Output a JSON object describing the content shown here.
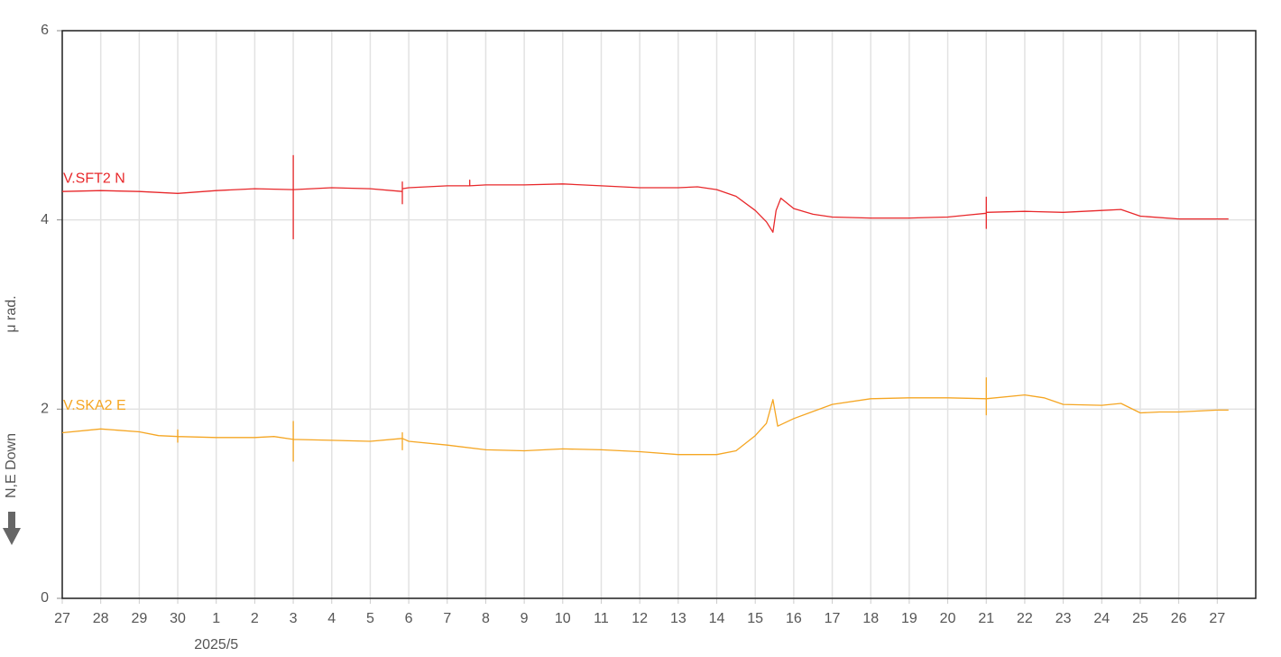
{
  "chart_data": {
    "type": "line",
    "ylabel": "μ rad.",
    "direction_label": "N,E Down",
    "ylim": [
      0,
      6
    ],
    "yticks": [
      0,
      2,
      4,
      6
    ],
    "xlim": [
      "2025-04-27",
      "2025-05-28"
    ],
    "xticks": [
      {
        "value": "2025-04-27",
        "label": "27"
      },
      {
        "value": "2025-04-28",
        "label": "28"
      },
      {
        "value": "2025-04-29",
        "label": "29"
      },
      {
        "value": "2025-04-30",
        "label": "30"
      },
      {
        "value": "2025-05-01",
        "label": "1"
      },
      {
        "value": "2025-05-02",
        "label": "2"
      },
      {
        "value": "2025-05-03",
        "label": "3"
      },
      {
        "value": "2025-05-04",
        "label": "4"
      },
      {
        "value": "2025-05-05",
        "label": "5"
      },
      {
        "value": "2025-05-06",
        "label": "6"
      },
      {
        "value": "2025-05-07",
        "label": "7"
      },
      {
        "value": "2025-05-08",
        "label": "8"
      },
      {
        "value": "2025-05-09",
        "label": "9"
      },
      {
        "value": "2025-05-10",
        "label": "10"
      },
      {
        "value": "2025-05-11",
        "label": "11"
      },
      {
        "value": "2025-05-12",
        "label": "12"
      },
      {
        "value": "2025-05-13",
        "label": "13"
      },
      {
        "value": "2025-05-14",
        "label": "14"
      },
      {
        "value": "2025-05-15",
        "label": "15"
      },
      {
        "value": "2025-05-16",
        "label": "16"
      },
      {
        "value": "2025-05-17",
        "label": "17"
      },
      {
        "value": "2025-05-18",
        "label": "18"
      },
      {
        "value": "2025-05-19",
        "label": "19"
      },
      {
        "value": "2025-05-20",
        "label": "20"
      },
      {
        "value": "2025-05-21",
        "label": "21"
      },
      {
        "value": "2025-05-22",
        "label": "22"
      },
      {
        "value": "2025-05-23",
        "label": "23"
      },
      {
        "value": "2025-05-24",
        "label": "24"
      },
      {
        "value": "2025-05-25",
        "label": "25"
      },
      {
        "value": "2025-05-26",
        "label": "26"
      },
      {
        "value": "2025-05-27",
        "label": "27"
      }
    ],
    "x_group_label": {
      "value": "2025-05-01",
      "label": "2025/5"
    },
    "grid": true,
    "series": [
      {
        "name": "V.SFT2 N",
        "color": "#e8282b",
        "x": [
          "2025-04-27",
          "2025-04-28",
          "2025-04-29",
          "2025-04-30",
          "2025-05-01",
          "2025-05-02",
          "2025-05-03",
          "2025-05-03",
          "2025-05-03",
          "2025-05-03",
          "2025-05-04",
          "2025-05-05",
          "2025-05-05T20:00",
          "2025-05-05T20:00",
          "2025-05-05T20:00",
          "2025-05-05T20:00",
          "2025-05-06",
          "2025-05-07",
          "2025-05-07T14:00",
          "2025-05-07T14:00",
          "2025-05-07T14:00",
          "2025-05-08",
          "2025-05-09",
          "2025-05-10",
          "2025-05-11",
          "2025-05-12",
          "2025-05-13",
          "2025-05-13T12:00",
          "2025-05-14",
          "2025-05-14T12:00",
          "2025-05-15",
          "2025-05-15T07:00",
          "2025-05-15T11:00",
          "2025-05-15T13:00",
          "2025-05-15T16:00",
          "2025-05-16",
          "2025-05-16T12:00",
          "2025-05-17",
          "2025-05-18",
          "2025-05-19",
          "2025-05-20",
          "2025-05-20T12:00",
          "2025-05-21",
          "2025-05-21",
          "2025-05-21",
          "2025-05-21",
          "2025-05-22",
          "2025-05-23",
          "2025-05-24",
          "2025-05-24T12:00",
          "2025-05-25",
          "2025-05-26",
          "2025-05-27",
          "2025-05-27T07:00"
        ],
        "values": [
          4.3,
          4.31,
          4.3,
          4.28,
          4.31,
          4.33,
          4.32,
          4.68,
          3.8,
          4.32,
          4.34,
          4.33,
          4.3,
          4.4,
          4.17,
          4.33,
          4.34,
          4.36,
          4.36,
          4.42,
          4.36,
          4.37,
          4.37,
          4.38,
          4.36,
          4.34,
          4.34,
          4.35,
          4.32,
          4.25,
          4.1,
          3.98,
          3.87,
          4.1,
          4.23,
          4.12,
          4.06,
          4.03,
          4.02,
          4.02,
          4.03,
          4.05,
          4.07,
          4.24,
          3.91,
          4.08,
          4.09,
          4.08,
          4.1,
          4.11,
          4.04,
          4.01,
          4.01,
          4.01
        ]
      },
      {
        "name": "V.SKA2 E",
        "color": "#f5a623",
        "x": [
          "2025-04-27",
          "2025-04-28",
          "2025-04-29",
          "2025-04-29T12:00",
          "2025-04-30",
          "2025-04-30",
          "2025-04-30",
          "2025-04-30",
          "2025-05-01",
          "2025-05-02",
          "2025-05-02T12:00",
          "2025-05-03",
          "2025-05-03",
          "2025-05-03",
          "2025-05-03",
          "2025-05-04",
          "2025-05-05",
          "2025-05-05T20:00",
          "2025-05-05T20:00",
          "2025-05-05T20:00",
          "2025-05-05T20:00",
          "2025-05-06",
          "2025-05-07",
          "2025-05-08",
          "2025-05-09",
          "2025-05-10",
          "2025-05-11",
          "2025-05-12",
          "2025-05-13",
          "2025-05-14",
          "2025-05-14T12:00",
          "2025-05-15",
          "2025-05-15T07:00",
          "2025-05-15T11:00",
          "2025-05-15T14:00",
          "2025-05-16",
          "2025-05-17",
          "2025-05-18",
          "2025-05-19",
          "2025-05-20",
          "2025-05-21",
          "2025-05-21",
          "2025-05-21",
          "2025-05-21",
          "2025-05-22",
          "2025-05-22T12:00",
          "2025-05-23",
          "2025-05-24",
          "2025-05-24T12:00",
          "2025-05-25",
          "2025-05-25T12:00",
          "2025-05-26",
          "2025-05-27",
          "2025-05-27T07:00"
        ],
        "values": [
          1.75,
          1.79,
          1.76,
          1.72,
          1.71,
          1.78,
          1.65,
          1.71,
          1.7,
          1.7,
          1.71,
          1.68,
          1.87,
          1.45,
          1.68,
          1.67,
          1.66,
          1.69,
          1.75,
          1.57,
          1.69,
          1.66,
          1.62,
          1.57,
          1.56,
          1.58,
          1.57,
          1.55,
          1.52,
          1.52,
          1.56,
          1.72,
          1.85,
          2.1,
          1.82,
          1.9,
          2.05,
          2.11,
          2.12,
          2.12,
          2.11,
          2.33,
          1.94,
          2.11,
          2.15,
          2.12,
          2.05,
          2.04,
          2.06,
          1.96,
          1.97,
          1.97,
          1.99,
          1.99
        ]
      }
    ]
  }
}
